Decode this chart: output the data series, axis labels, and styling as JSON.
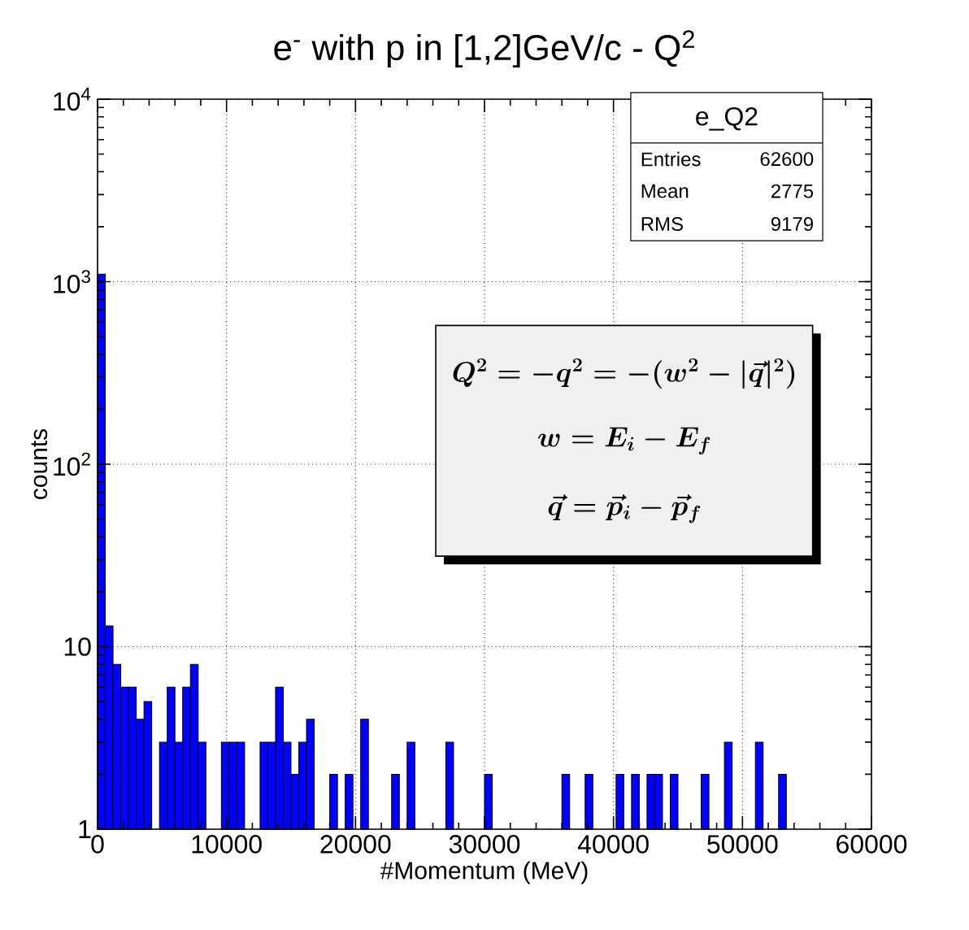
{
  "chart_data": {
    "type": "histogram",
    "title": "e$^{-}$ with p in [1,2]GeV/c - Q$^{2}$",
    "xlabel": "#Momentum (MeV)",
    "ylabel": "counts",
    "bins": [
      0,
      600,
      1200,
      1800,
      2400,
      3000,
      3600,
      4200,
      4800,
      5400,
      6000,
      6600,
      7200,
      7800,
      8400,
      9000,
      9600,
      10200,
      10800,
      11400,
      12000,
      12600,
      13200,
      13800,
      14400,
      15000,
      15600,
      16200,
      16800,
      17400,
      18000,
      18600,
      19200,
      19800,
      20400,
      21000,
      21600,
      22200,
      22800,
      23400,
      24000,
      24600,
      25200,
      25800,
      26400,
      27000,
      27600,
      28200,
      28800,
      29400,
      30000,
      30600,
      31200,
      31800,
      32400,
      33000,
      33600,
      34200,
      34800,
      35400,
      36000,
      36600,
      37200,
      37800,
      38400,
      39000,
      39600,
      40200,
      40800,
      41400,
      42000,
      42600,
      43200,
      43800,
      44400,
      45000,
      45600,
      46200,
      46800,
      47400,
      48000,
      48600,
      49200,
      49800,
      50400,
      51000,
      51600,
      52200,
      52800,
      53400,
      54000,
      54600,
      55200,
      55800,
      56400,
      57000,
      57600,
      58200,
      58800,
      59400,
      60000
    ],
    "values": [
      1100,
      13,
      8,
      6,
      6,
      4,
      5,
      null,
      3,
      6,
      3,
      6,
      8,
      3,
      null,
      null,
      3,
      3,
      3,
      null,
      null,
      3,
      3,
      6,
      3,
      2,
      3,
      4,
      null,
      null,
      2,
      null,
      2,
      null,
      4,
      null,
      null,
      null,
      2,
      null,
      3,
      null,
      null,
      null,
      null,
      3,
      null,
      null,
      null,
      null,
      2,
      null,
      null,
      null,
      null,
      null,
      null,
      null,
      null,
      null,
      2,
      null,
      null,
      2,
      null,
      null,
      null,
      2,
      null,
      2,
      null,
      2,
      2,
      null,
      2,
      null,
      null,
      null,
      2,
      null,
      null,
      3,
      null,
      null,
      null,
      3,
      null,
      null,
      2,
      null,
      null,
      null,
      null,
      null,
      null,
      null,
      null,
      null,
      null,
      null
    ],
    "color": "#0000ff",
    "log": "y",
    "grid": true,
    "xlim": [
      0,
      60000
    ],
    "xticks": [
      0,
      10000,
      20000,
      30000,
      40000,
      50000,
      60000
    ],
    "ylim": [
      1,
      10000
    ],
    "yticks": [
      1,
      10,
      {
        "value": 100,
        "label": "10$^{2}$"
      },
      {
        "value": 1000,
        "label": "10$^{3}$"
      },
      {
        "value": 10000,
        "label": "10$^{4}$"
      }
    ],
    "annotations": [
      "e_Q2",
      "Entries",
      "62600",
      "Mean",
      "2775",
      "RMS",
      "9179",
      "Q^{2} = -q^{2} = -(w^{2}-|\\vec{q}|^{2})",
      "w = E_{i} - E_{f}",
      "\\vec{q} = \\vec{p}_{i} - \\vec{p}_{f}"
    ]
  }
}
